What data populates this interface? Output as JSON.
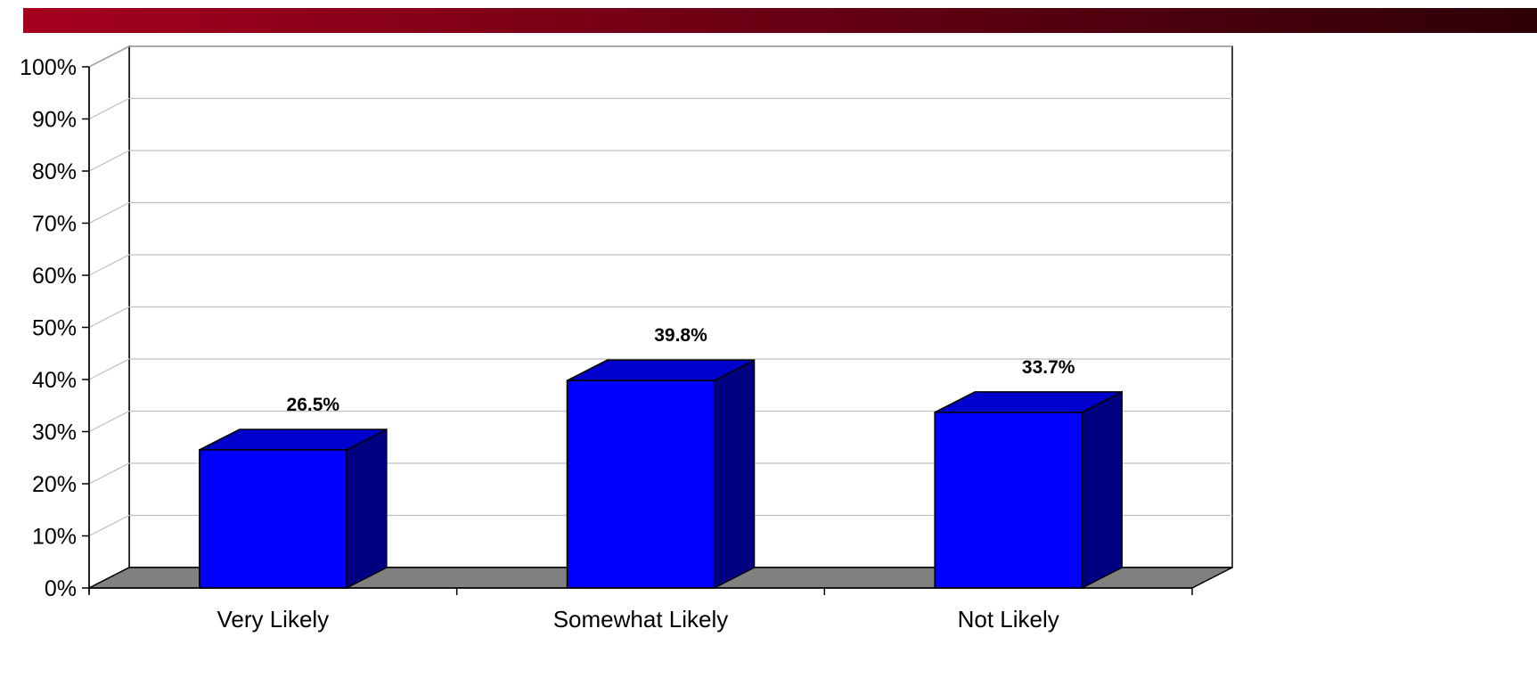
{
  "colors": {
    "banner_start": "#a5001e",
    "banner_end": "#2e0008",
    "bar_front": "#0000ff",
    "bar_top": "#0000cc",
    "bar_side": "#000080",
    "floor": "#808080",
    "grid": "#c0c0c0"
  },
  "chart_data": {
    "type": "bar",
    "style": "3d-column",
    "title": "",
    "xlabel": "",
    "ylabel": "",
    "categories": [
      "Very Likely",
      "Somewhat Likely",
      "Not Likely"
    ],
    "values": [
      26.5,
      39.8,
      33.7
    ],
    "data_labels": [
      "26.5%",
      "39.8%",
      "33.7%"
    ],
    "ylim": [
      0,
      100
    ],
    "y_ticks": [
      0,
      10,
      20,
      30,
      40,
      50,
      60,
      70,
      80,
      90,
      100
    ],
    "y_tick_labels": [
      "0%",
      "10%",
      "20%",
      "30%",
      "40%",
      "50%",
      "60%",
      "70%",
      "80%",
      "90%",
      "100%"
    ],
    "grid": true,
    "legend": "none"
  }
}
